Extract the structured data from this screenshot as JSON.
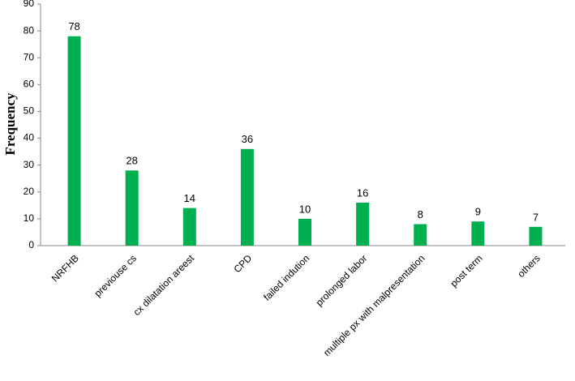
{
  "chart_data": {
    "type": "bar",
    "y_label": "Frequency",
    "categories": [
      "NRFHB",
      "previouse cs",
      "cx dilatation areest",
      "CPD",
      "failed indution",
      "prolonged labor",
      "multiple px with malpresentation",
      "post term",
      "others"
    ],
    "values": [
      78,
      28,
      14,
      36,
      10,
      16,
      8,
      9,
      7
    ],
    "color": "#00b050",
    "ylim": [
      0,
      90
    ],
    "yticks": [
      0,
      10,
      20,
      30,
      40,
      50,
      60,
      70,
      80,
      90
    ],
    "grid": false
  }
}
